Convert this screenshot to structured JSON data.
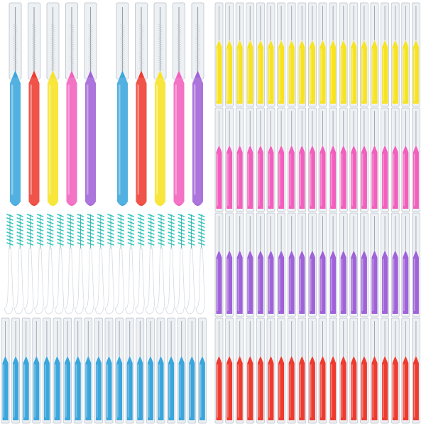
{
  "colors": {
    "background": "#ffffff",
    "blue": "#3aa6dc",
    "red": "#ee3b2f",
    "yellow": "#f7e321",
    "pink": "#f25fbd",
    "purple": "#a062d8",
    "teal_bristles": "#38c9c0",
    "cap_clear": "#eef1f4",
    "cap_edge": "#b9c0c8",
    "white_handle": "#ffffff"
  },
  "groups": [
    {
      "name": "large-brushes-set-1",
      "style": "large",
      "count": 5,
      "colors": [
        "blue",
        "red",
        "yellow",
        "pink",
        "purple"
      ]
    },
    {
      "name": "large-brushes-set-2",
      "style": "large",
      "count": 5,
      "colors": [
        "blue",
        "red",
        "yellow",
        "pink",
        "purple"
      ]
    },
    {
      "name": "yellow-brush-row",
      "style": "small",
      "count": 20,
      "colors": [
        "yellow"
      ]
    },
    {
      "name": "pink-brush-row",
      "style": "small",
      "count": 20,
      "colors": [
        "pink"
      ]
    },
    {
      "name": "purple-brush-row",
      "style": "small",
      "count": 20,
      "colors": [
        "purple"
      ]
    },
    {
      "name": "red-brush-row",
      "style": "small",
      "count": 20,
      "colors": [
        "red"
      ]
    },
    {
      "name": "white-floss-picks",
      "style": "pick",
      "count": 20,
      "colors": [
        "teal_bristles"
      ]
    },
    {
      "name": "blue-brush-row",
      "style": "small",
      "count": 20,
      "colors": [
        "blue"
      ]
    }
  ]
}
